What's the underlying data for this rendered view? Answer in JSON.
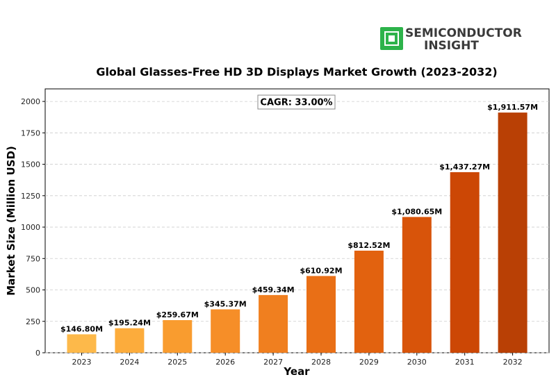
{
  "logo": {
    "line1": "SEMICONDUCTOR",
    "line2": "INSIGHT",
    "icon": "chip-icon",
    "icon_color": "#2db34a"
  },
  "chart_data": {
    "type": "bar",
    "title": "Global Glasses-Free HD 3D Displays Market Growth (2023-2032)",
    "xlabel": "Year",
    "ylabel": "Market Size (Million USD)",
    "categories": [
      "2023",
      "2024",
      "2025",
      "2026",
      "2027",
      "2028",
      "2029",
      "2030",
      "2031",
      "2032"
    ],
    "values": [
      146.8,
      195.24,
      259.67,
      345.37,
      459.34,
      610.92,
      812.52,
      1080.65,
      1437.27,
      1911.57
    ],
    "value_labels": [
      "$146.80M",
      "$195.24M",
      "$259.67M",
      "$345.37M",
      "$459.34M",
      "$610.92M",
      "$812.52M",
      "$1,080.65M",
      "$1,437.27M",
      "$1,911.57M"
    ],
    "colors": [
      "#fdb94a",
      "#fcac3c",
      "#f99c2f",
      "#f68e28",
      "#f07f1f",
      "#e96f16",
      "#e2620f",
      "#d8540a",
      "#cc4705",
      "#b94005"
    ],
    "ylim": [
      0,
      2100
    ],
    "yticks": [
      0,
      250,
      500,
      750,
      1000,
      1250,
      1500,
      1750,
      2000
    ],
    "grid": "horizontal dashed",
    "annotation": "CAGR: 33.00%"
  }
}
